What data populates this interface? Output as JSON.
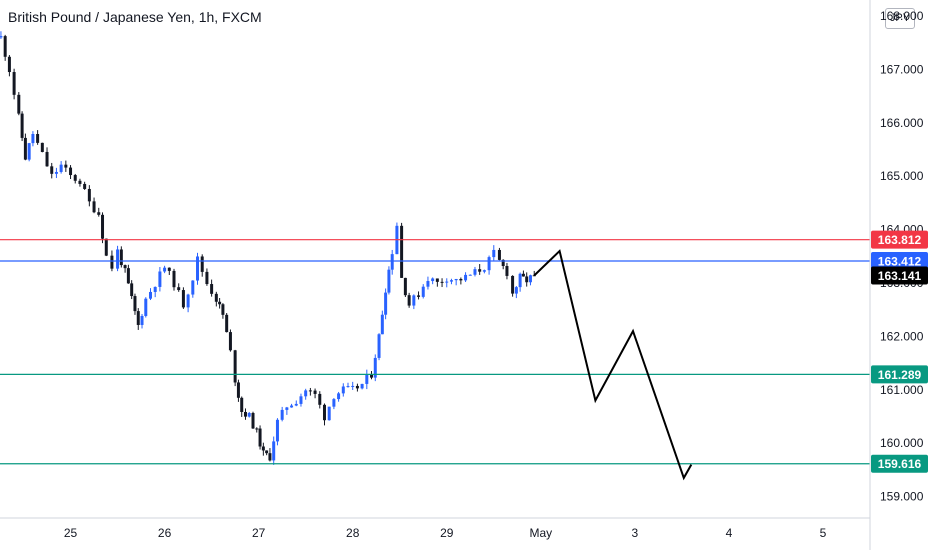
{
  "title": "British Pound / Japanese Yen, 1h, FXCM",
  "currency": "JPY",
  "colors": {
    "up": "#2962ff",
    "down": "#131722",
    "resistance": "#f23645",
    "current": "#2962ff",
    "support": "#089981",
    "last": "#000000",
    "projection": "#000000"
  },
  "chart_data": {
    "type": "candlestick",
    "title": "British Pound / Japanese Yen, 1h, FXCM",
    "ylim": [
      158.6,
      168.3
    ],
    "y_ticks": [
      "159.000",
      "160.000",
      "161.000",
      "162.000",
      "163.000",
      "164.000",
      "165.000",
      "166.000",
      "167.000",
      "168.000"
    ],
    "x_ticks": [
      {
        "label": "25",
        "t": 25
      },
      {
        "label": "26",
        "t": 26
      },
      {
        "label": "27",
        "t": 27
      },
      {
        "label": "28",
        "t": 28
      },
      {
        "label": "29",
        "t": 29
      },
      {
        "label": "May",
        "t": 30
      },
      {
        "label": "3",
        "t": 31
      },
      {
        "label": "4",
        "t": 32
      },
      {
        "label": "5",
        "t": 33
      }
    ],
    "xlim": [
      24.25,
      33.5
    ],
    "price_series": [
      [
        24.26,
        167.6
      ],
      [
        24.35,
        167.0
      ],
      [
        24.45,
        166.1
      ],
      [
        24.52,
        165.35
      ],
      [
        24.6,
        165.8
      ],
      [
        24.7,
        165.4
      ],
      [
        24.8,
        165.0
      ],
      [
        24.9,
        165.2
      ],
      [
        25.0,
        165.0
      ],
      [
        25.1,
        164.9
      ],
      [
        25.2,
        164.5
      ],
      [
        25.3,
        164.3
      ],
      [
        25.38,
        163.5
      ],
      [
        25.44,
        163.3
      ],
      [
        25.5,
        163.6
      ],
      [
        25.58,
        163.2
      ],
      [
        25.65,
        162.7
      ],
      [
        25.72,
        162.2
      ],
      [
        25.8,
        162.7
      ],
      [
        25.9,
        163.0
      ],
      [
        26.0,
        163.3
      ],
      [
        26.1,
        163.0
      ],
      [
        26.2,
        162.6
      ],
      [
        26.3,
        163.1
      ],
      [
        26.35,
        163.45
      ],
      [
        26.45,
        163.0
      ],
      [
        26.55,
        162.7
      ],
      [
        26.62,
        162.4
      ],
      [
        26.7,
        161.7
      ],
      [
        26.75,
        161.2
      ],
      [
        26.82,
        160.6
      ],
      [
        26.9,
        160.5
      ],
      [
        26.98,
        160.2
      ],
      [
        27.05,
        159.8
      ],
      [
        27.12,
        159.75
      ],
      [
        27.2,
        160.4
      ],
      [
        27.3,
        160.7
      ],
      [
        27.4,
        160.8
      ],
      [
        27.5,
        161.0
      ],
      [
        27.6,
        160.9
      ],
      [
        27.7,
        160.5
      ],
      [
        27.8,
        160.9
      ],
      [
        27.9,
        161.0
      ],
      [
        28.0,
        161.0
      ],
      [
        28.1,
        161.1
      ],
      [
        28.2,
        161.3
      ],
      [
        28.28,
        162.0
      ],
      [
        28.35,
        162.9
      ],
      [
        28.42,
        163.6
      ],
      [
        28.47,
        164.1
      ],
      [
        28.52,
        163.1
      ],
      [
        28.6,
        162.6
      ],
      [
        28.7,
        162.8
      ],
      [
        28.8,
        163.1
      ],
      [
        28.9,
        163.0
      ],
      [
        29.0,
        163.1
      ],
      [
        29.1,
        163.05
      ],
      [
        29.2,
        163.1
      ],
      [
        29.3,
        163.2
      ],
      [
        29.4,
        163.3
      ],
      [
        29.5,
        163.55
      ],
      [
        29.56,
        163.4
      ],
      [
        29.64,
        163.2
      ],
      [
        29.7,
        162.8
      ],
      [
        29.78,
        163.1
      ],
      [
        29.85,
        163.05
      ],
      [
        29.93,
        163.141
      ]
    ],
    "projection": [
      [
        29.93,
        163.141
      ],
      [
        30.2,
        163.6
      ],
      [
        30.58,
        160.8
      ],
      [
        30.98,
        162.1
      ],
      [
        31.52,
        159.35
      ],
      [
        31.6,
        159.6
      ]
    ],
    "levels": [
      {
        "name": "resistance",
        "value": 163.812,
        "label": "163.812",
        "color_key": "resistance"
      },
      {
        "name": "current",
        "value": 163.412,
        "label": "163.412",
        "color_key": "current"
      },
      {
        "name": "support-upper",
        "value": 161.289,
        "label": "161.289",
        "color_key": "support"
      },
      {
        "name": "support-lower",
        "value": 159.616,
        "label": "159.616",
        "color_key": "support"
      }
    ],
    "last_price": {
      "value": 163.141,
      "label": "163.141"
    }
  }
}
